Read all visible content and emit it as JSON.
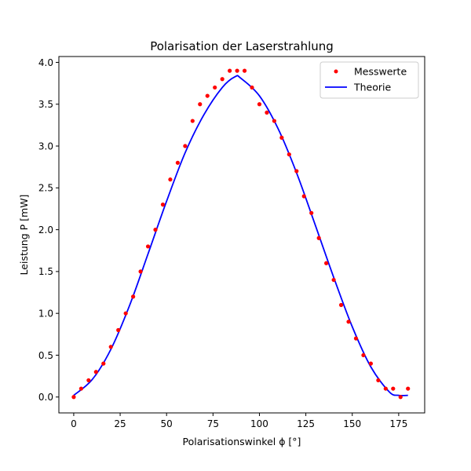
{
  "chart_data": {
    "type": "line",
    "title": "Polarisation der Laserstrahlung",
    "xlabel": "Polarisationswinkel ϕ [°]",
    "ylabel": "Leistung P [mW]",
    "xlim": [
      -8,
      189
    ],
    "ylim": [
      -0.19,
      4.07
    ],
    "xticks": [
      0,
      25,
      50,
      75,
      100,
      125,
      150,
      175
    ],
    "yticks": [
      "0.0",
      "0.5",
      "1.0",
      "1.5",
      "2.0",
      "2.5",
      "3.0",
      "3.5",
      "4.0"
    ],
    "legend_position": "top-right",
    "grid": false,
    "colors": {
      "measured": "#ff0000",
      "theory": "#0000ff"
    },
    "series": [
      {
        "name": "Messwerte",
        "kind": "scatter",
        "x": [
          0,
          4,
          8,
          12,
          16,
          20,
          24,
          28,
          32,
          36,
          40,
          44,
          48,
          52,
          56,
          60,
          64,
          68,
          72,
          76,
          80,
          84,
          88,
          92,
          96,
          100,
          104,
          108,
          112,
          116,
          120,
          124,
          128,
          132,
          136,
          140,
          144,
          148,
          152,
          156,
          160,
          164,
          168,
          172,
          176,
          180
        ],
        "y": [
          0.0,
          0.1,
          0.2,
          0.3,
          0.4,
          0.6,
          0.8,
          1.0,
          1.2,
          1.5,
          1.8,
          2.0,
          2.3,
          2.6,
          2.8,
          3.0,
          3.3,
          3.5,
          3.6,
          3.7,
          3.8,
          3.9,
          3.9,
          3.9,
          3.7,
          3.5,
          3.4,
          3.3,
          3.1,
          2.9,
          2.7,
          2.4,
          2.2,
          1.9,
          1.6,
          1.4,
          1.1,
          0.9,
          0.7,
          0.5,
          0.4,
          0.2,
          0.1,
          0.1,
          0.0,
          0.1
        ]
      },
      {
        "name": "Theorie",
        "kind": "line",
        "x": [
          0,
          10,
          20,
          30,
          40,
          50,
          60,
          70,
          80,
          87,
          90,
          100,
          110,
          120,
          130,
          140,
          150,
          160,
          170,
          175,
          180
        ],
        "y": [
          0.02,
          0.21,
          0.57,
          1.09,
          1.71,
          2.34,
          2.92,
          3.37,
          3.7,
          3.83,
          3.81,
          3.6,
          3.21,
          2.68,
          2.06,
          1.43,
          0.84,
          0.36,
          0.06,
          0.02,
          0.02
        ]
      }
    ]
  }
}
